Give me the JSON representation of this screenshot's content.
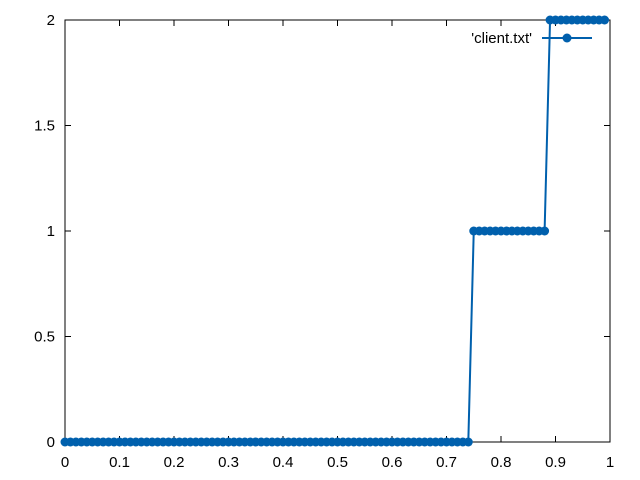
{
  "chart_data": {
    "type": "line",
    "title": "",
    "xlabel": "",
    "ylabel": "",
    "xlim": [
      0,
      1
    ],
    "ylim": [
      0,
      2
    ],
    "xticks": [
      "0",
      "0.1",
      "0.2",
      "0.3",
      "0.4",
      "0.5",
      "0.6",
      "0.7",
      "0.8",
      "0.9",
      "1"
    ],
    "yticks": [
      "0",
      "0.5",
      "1",
      "1.5",
      "2"
    ],
    "grid": false,
    "legend_position": "top-right",
    "series": [
      {
        "name": "'client.txt'",
        "color": "#0060ad",
        "marker": "filled-circle",
        "x": [
          0,
          0.01,
          0.02,
          0.03,
          0.04,
          0.05,
          0.06,
          0.07,
          0.08,
          0.09,
          0.1,
          0.11,
          0.12,
          0.13,
          0.14,
          0.15,
          0.16,
          0.17,
          0.18,
          0.19,
          0.2,
          0.21,
          0.22,
          0.23,
          0.24,
          0.25,
          0.26,
          0.27,
          0.28,
          0.29,
          0.3,
          0.31,
          0.32,
          0.33,
          0.34,
          0.35,
          0.36,
          0.37,
          0.38,
          0.39,
          0.4,
          0.41,
          0.42,
          0.43,
          0.44,
          0.45,
          0.46,
          0.47,
          0.48,
          0.49,
          0.5,
          0.51,
          0.52,
          0.53,
          0.54,
          0.55,
          0.56,
          0.57,
          0.58,
          0.59,
          0.6,
          0.61,
          0.62,
          0.63,
          0.64,
          0.65,
          0.66,
          0.67,
          0.68,
          0.69,
          0.7,
          0.71,
          0.72,
          0.73,
          0.74,
          0.75,
          0.76,
          0.77,
          0.78,
          0.79,
          0.8,
          0.81,
          0.82,
          0.83,
          0.84,
          0.85,
          0.86,
          0.87,
          0.88,
          0.89,
          0.9,
          0.91,
          0.92,
          0.93,
          0.94,
          0.95,
          0.96,
          0.97,
          0.98,
          0.99
        ],
        "y": [
          0,
          0,
          0,
          0,
          0,
          0,
          0,
          0,
          0,
          0,
          0,
          0,
          0,
          0,
          0,
          0,
          0,
          0,
          0,
          0,
          0,
          0,
          0,
          0,
          0,
          0,
          0,
          0,
          0,
          0,
          0,
          0,
          0,
          0,
          0,
          0,
          0,
          0,
          0,
          0,
          0,
          0,
          0,
          0,
          0,
          0,
          0,
          0,
          0,
          0,
          0,
          0,
          0,
          0,
          0,
          0,
          0,
          0,
          0,
          0,
          0,
          0,
          0,
          0,
          0,
          0,
          0,
          0,
          0,
          0,
          0,
          0,
          0,
          0,
          0,
          1,
          1,
          1,
          1,
          1,
          1,
          1,
          1,
          1,
          1,
          1,
          1,
          1,
          1,
          2,
          2,
          2,
          2,
          2,
          2,
          2,
          2,
          2,
          2,
          2
        ]
      }
    ]
  }
}
